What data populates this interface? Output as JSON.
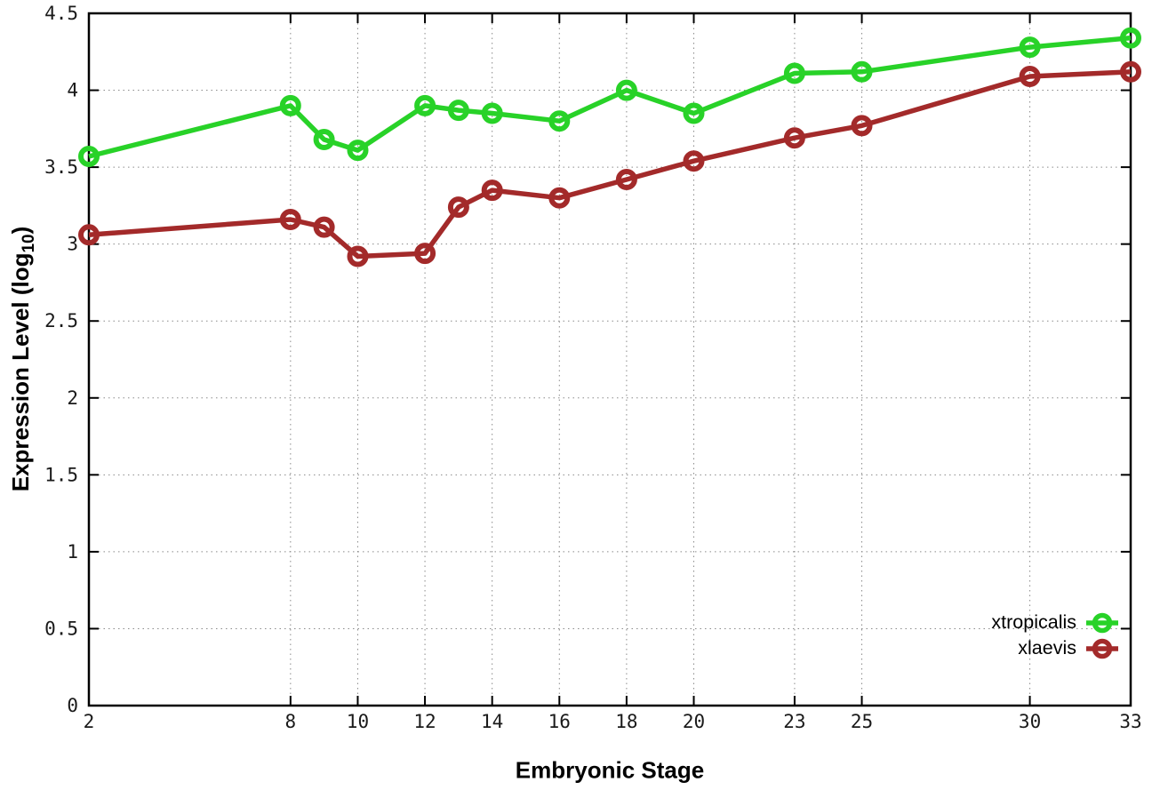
{
  "chart_data": {
    "type": "line",
    "title": "",
    "xlabel": "Embryonic Stage",
    "ylabel": "Expression Level (log10)",
    "ylabel_parts": {
      "prefix": "Expression Level (log",
      "sub": "10",
      "suffix": ")"
    },
    "x": [
      2,
      8,
      9,
      10,
      12,
      13,
      14,
      16,
      18,
      20,
      23,
      25,
      30,
      33
    ],
    "series": [
      {
        "name": "xtropicalis",
        "color": "#28d228",
        "values": [
          3.57,
          3.9,
          3.68,
          3.61,
          3.9,
          3.87,
          3.85,
          3.8,
          4.0,
          3.85,
          4.11,
          4.12,
          4.28,
          4.34
        ]
      },
      {
        "name": "xlaevis",
        "color": "#a32a2a",
        "values": [
          3.06,
          3.16,
          3.11,
          2.92,
          2.94,
          3.24,
          3.35,
          3.3,
          3.42,
          3.54,
          3.69,
          3.77,
          4.09,
          4.12
        ]
      }
    ],
    "xticks": [
      2,
      8,
      10,
      12,
      14,
      16,
      18,
      20,
      23,
      25,
      30,
      33
    ],
    "yticks": [
      0,
      0.5,
      1,
      1.5,
      2,
      2.5,
      3,
      3.5,
      4,
      4.5
    ],
    "xlim": [
      2,
      33
    ],
    "ylim": [
      0,
      4.5
    ],
    "grid": true,
    "legend_position": "bottom-right",
    "marker": "open-circle",
    "background_color": "#ffffff",
    "grid_color": "#8a8a8a",
    "axis_color": "#000000"
  }
}
